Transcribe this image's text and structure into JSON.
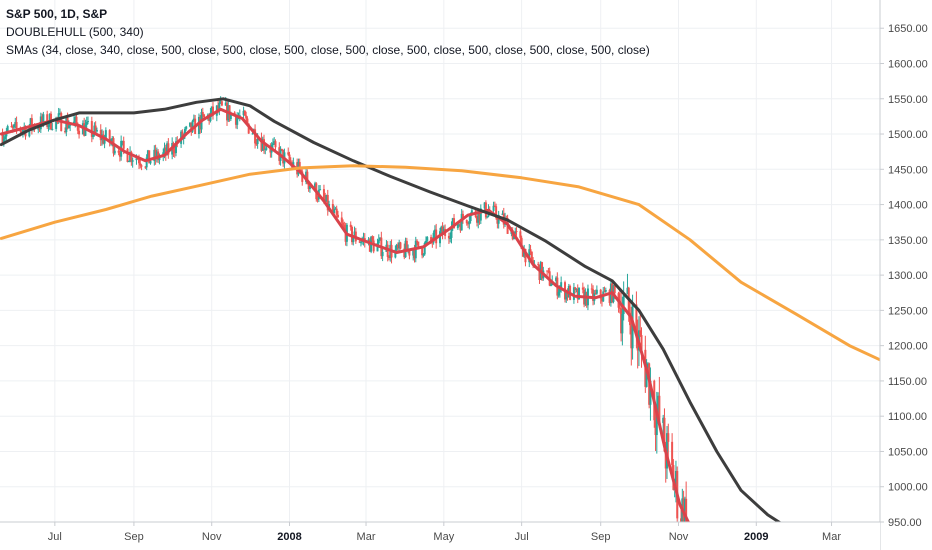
{
  "header": {
    "title": "S&P 500, 1D, S&P",
    "indicator_1": "DOUBLEHULL (500, 340)",
    "indicator_2": "SMAs (34, close, 340, close, 500, close, 500, close, 500, close, 500, close, 500, close, 500, close, 500, close, 500, close)"
  },
  "colors": {
    "up": "#26a69a",
    "down": "#ef5350",
    "sma34": "#d9434b",
    "sma340": "#3d3d3d",
    "sma500": "#f7a541",
    "grid": "#eef0f3",
    "axis": "#c9ccd1"
  },
  "chart_data": {
    "type": "line",
    "title": "S&P 500, 1D, S&P",
    "x_tick_labels": [
      "Jul",
      "Sep",
      "Nov",
      "2008",
      "Mar",
      "May",
      "Jul",
      "Sep",
      "Nov",
      "2009",
      "Mar"
    ],
    "y_tick_labels": [
      "950.00",
      "1000.00",
      "1050.00",
      "1100.00",
      "1150.00",
      "1200.00",
      "1250.00",
      "1300.00",
      "1350.00",
      "1400.00",
      "1450.00",
      "1500.00",
      "1550.00",
      "1600.00",
      "1650.00"
    ],
    "ylim": [
      950,
      1690
    ],
    "x_range": [
      "2007-05-19",
      "2009-04-08"
    ],
    "series": [
      {
        "name": "SMA 34",
        "key": "sma34",
        "x": [
          "2007-05-20",
          "2007-06-10",
          "2007-07-01",
          "2007-07-20",
          "2007-08-10",
          "2007-08-25",
          "2007-09-10",
          "2007-09-25",
          "2007-10-12",
          "2007-10-25",
          "2007-11-08",
          "2007-11-25",
          "2007-12-10",
          "2007-12-25",
          "2008-01-10",
          "2008-01-28",
          "2008-02-15",
          "2008-03-05",
          "2008-03-25",
          "2008-04-15",
          "2008-05-05",
          "2008-05-20",
          "2008-06-05",
          "2008-06-20",
          "2008-07-10",
          "2008-07-28",
          "2008-08-12",
          "2008-08-28",
          "2008-09-10",
          "2008-09-25",
          "2008-10-08",
          "2008-10-22",
          "2008-11-02",
          "2008-11-10"
        ],
        "values": [
          1500,
          1510,
          1520,
          1512,
          1493,
          1475,
          1462,
          1470,
          1500,
          1520,
          1535,
          1522,
          1490,
          1470,
          1445,
          1405,
          1358,
          1345,
          1332,
          1340,
          1365,
          1385,
          1392,
          1372,
          1315,
          1285,
          1270,
          1268,
          1275,
          1240,
          1160,
          1050,
          975,
          945
        ]
      },
      {
        "name": "SMA 340",
        "key": "sma340",
        "x": [
          "2007-05-20",
          "2007-06-10",
          "2007-07-01",
          "2007-07-20",
          "2007-08-10",
          "2007-09-01",
          "2007-09-25",
          "2007-10-20",
          "2007-11-10",
          "2007-12-01",
          "2007-12-20",
          "2008-01-20",
          "2008-02-20",
          "2008-03-20",
          "2008-04-20",
          "2008-05-20",
          "2008-06-20",
          "2008-07-20",
          "2008-08-20",
          "2008-09-10",
          "2008-10-01",
          "2008-10-20",
          "2008-11-10",
          "2008-12-01",
          "2008-12-20",
          "2009-01-10",
          "2009-01-23"
        ],
        "values": [
          1485,
          1505,
          1520,
          1530,
          1530,
          1530,
          1535,
          1545,
          1550,
          1540,
          1518,
          1488,
          1462,
          1440,
          1418,
          1398,
          1378,
          1348,
          1312,
          1292,
          1250,
          1195,
          1120,
          1050,
          995,
          960,
          945
        ]
      },
      {
        "name": "SMA 500",
        "key": "sma500",
        "x": [
          "2007-05-20",
          "2007-07-01",
          "2007-08-10",
          "2007-09-15",
          "2007-10-25",
          "2007-12-01",
          "2008-01-10",
          "2008-02-20",
          "2008-04-01",
          "2008-05-15",
          "2008-07-01",
          "2008-08-15",
          "2008-10-01",
          "2008-11-10",
          "2008-12-20",
          "2009-02-01",
          "2009-03-15",
          "2009-04-08"
        ],
        "values": [
          1352,
          1375,
          1393,
          1412,
          1428,
          1443,
          1452,
          1455,
          1453,
          1448,
          1438,
          1425,
          1400,
          1350,
          1290,
          1245,
          1200,
          1180
        ]
      }
    ]
  }
}
